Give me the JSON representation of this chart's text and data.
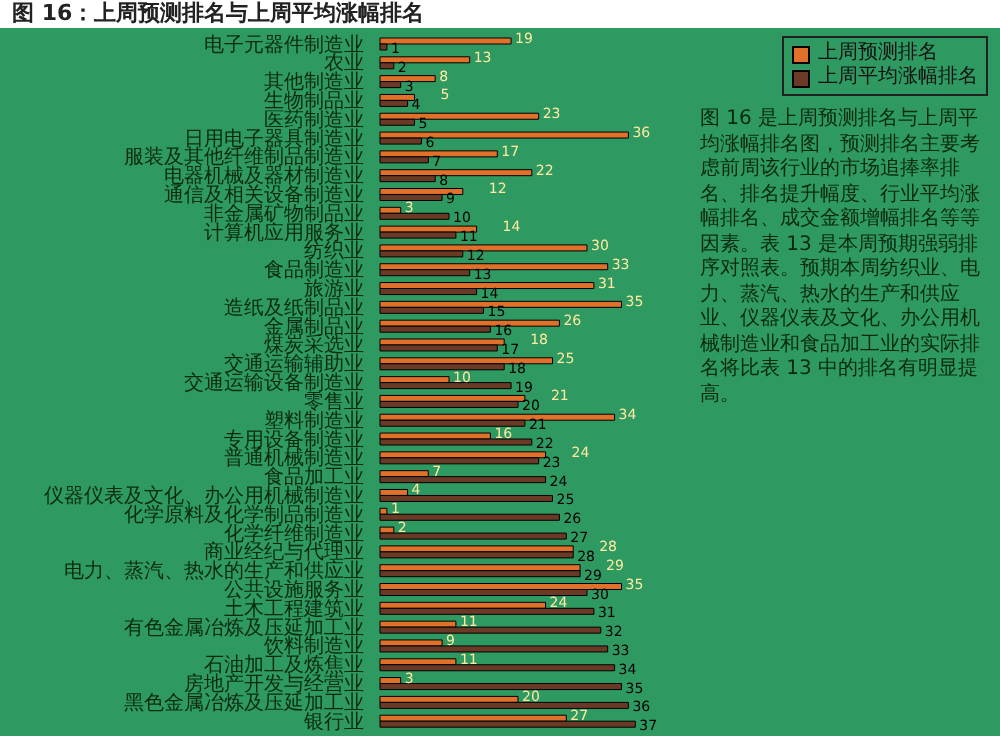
{
  "chart_data": {
    "type": "bar",
    "orientation": "horizontal",
    "title": "图 16：上周预测排名与上周平均涨幅排名",
    "annotations": [
      "图 16 是上周预测排名与上周平均涨幅排名图，预测排名主要考虑前周该行业的市场追捧率排名、排名提升幅度、行业平均涨幅排名、成交金额增幅排名等等因素。表 13 是本周预期强弱排序对照表。预期本周纺织业、电力、蒸汽、热水的生产和供应业、仪器仪表及文化、办公用机械制造业和食品加工业的实际排名将比表 13 中的排名有明显提高。"
    ],
    "categories": [
      "电子元器件制造业",
      "农业",
      "其他制造业",
      "生物制品业",
      "医药制造业",
      "日用电子器具制造业",
      "服装及其他纤维制品制造业",
      "电器机械及器材制造业",
      "通信及相关设备制造业",
      "非金属矿物制品业",
      "计算机应用服务业",
      "纺织业",
      "食品制造业",
      "旅游业",
      "造纸及纸制品业",
      "金属制品业",
      "煤炭采选业",
      "交通运输辅助业",
      "交通运输设备制造业",
      "零售业",
      "塑料制造业",
      "专用设备制造业",
      "普通机械制造业",
      "食品加工业",
      "仪器仪表及文化、办公用机械制造业",
      "化学原料及化学制品制造业",
      "化学纤维制造业",
      "商业经纪与代理业",
      "电力、蒸汽、热水的生产和供应业",
      "公共设施服务业",
      "土木工程建筑业",
      "有色金属冶炼及压延加工业",
      "饮料制造业",
      "石油加工及炼焦业",
      "房地产开发与经营业",
      "黑色金属冶炼及压延加工业",
      "银行业"
    ],
    "series": [
      {
        "name": "上周预测排名",
        "color": "#e0702a",
        "values": [
          19,
          13,
          8,
          5,
          23,
          36,
          17,
          22,
          12,
          3,
          14,
          30,
          33,
          31,
          35,
          26,
          18,
          25,
          10,
          21,
          34,
          16,
          24,
          7,
          4,
          1,
          2,
          28,
          29,
          35,
          24,
          11,
          9,
          11,
          3,
          20,
          27
        ]
      },
      {
        "name": "上周平均涨幅排名",
        "color": "#6b3a26",
        "values": [
          1,
          2,
          3,
          4,
          5,
          6,
          7,
          8,
          9,
          10,
          11,
          12,
          13,
          14,
          15,
          16,
          17,
          18,
          19,
          20,
          21,
          22,
          23,
          24,
          25,
          26,
          27,
          28,
          29,
          30,
          31,
          32,
          33,
          34,
          35,
          36,
          37
        ]
      }
    ],
    "data_labels": true,
    "legend": "top right",
    "grid": false
  }
}
